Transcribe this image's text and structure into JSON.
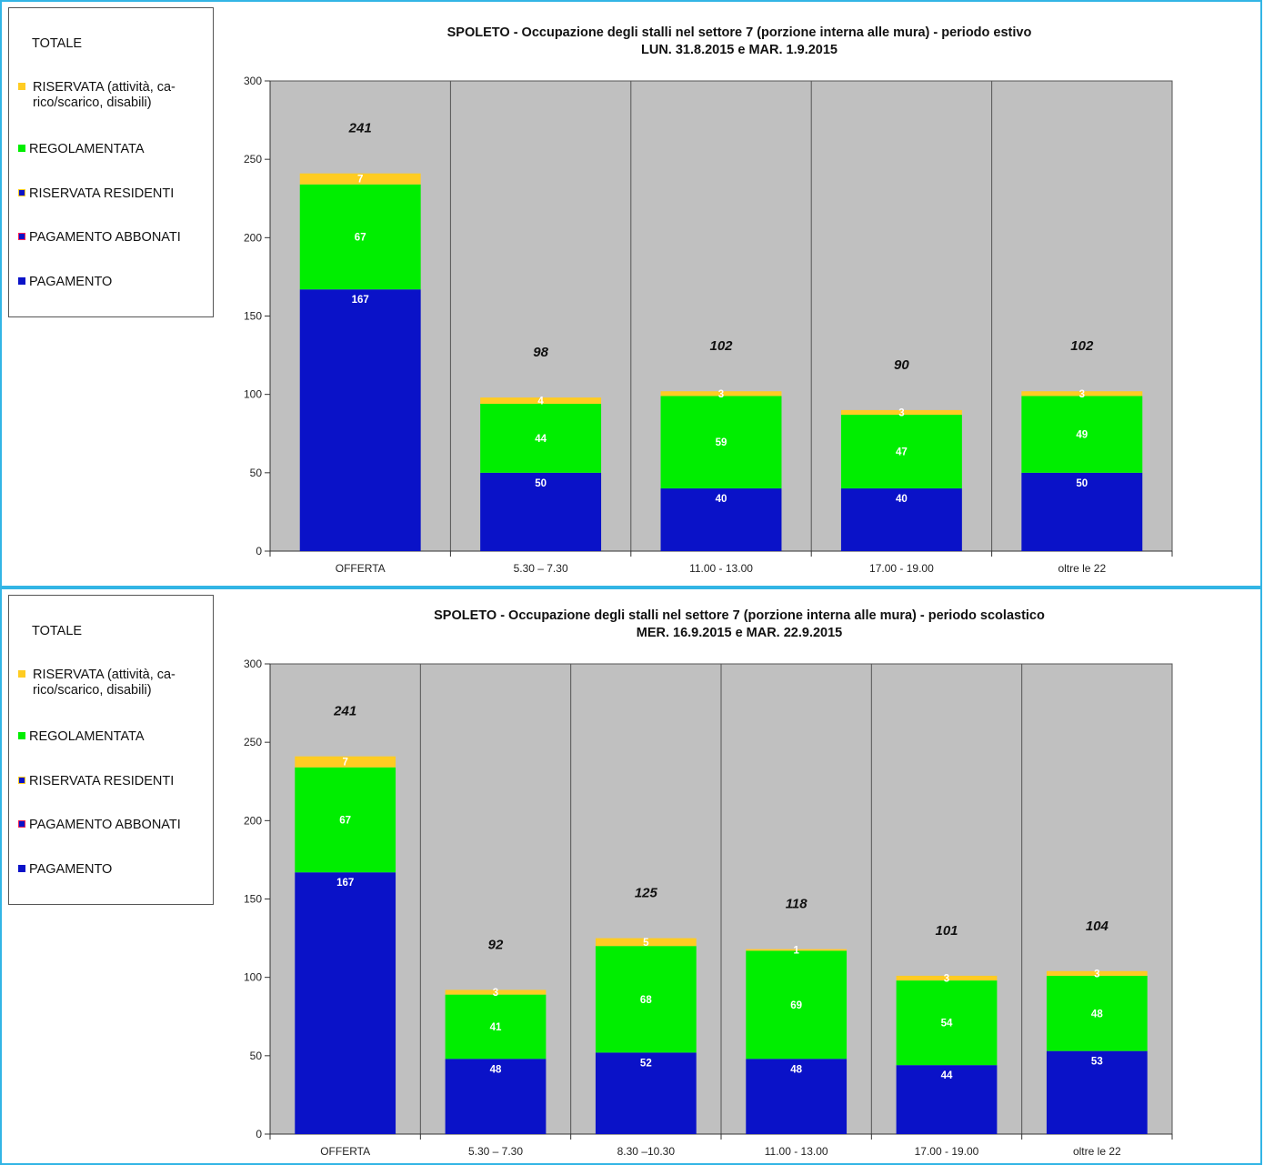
{
  "colors": {
    "riservata": "#ffcc22",
    "regolamentata": "#00ee00",
    "pagamento": "#0a12c8",
    "plot_bg": "#c0c0c0"
  },
  "legend": {
    "totale": "TOTALE",
    "riservata_l1": "RISERVATA (attività, ca-",
    "riservata_l2": "rico/scarico, disabili)",
    "regolamentata": "REGOLAMENTATA",
    "riservata_residenti": "RISERVATA RESIDENTI",
    "pagamento_abbonati": "PAGAMENTO ABBONATI",
    "pagamento": "PAGAMENTO"
  },
  "chart_data": [
    {
      "type": "bar",
      "stacked": true,
      "title": "SPOLETO - Occupazione degli stalli nel settore 7 (porzione interna alle mura) - periodo estivo",
      "subtitle": "LUN. 31.8.2015 e MAR. 1.9.2015",
      "categories": [
        "OFFERTA",
        "5.30 – 7.30",
        "11.00 - 13.00",
        "17.00 - 19.00",
        "oltre le 22"
      ],
      "series": [
        {
          "name": "PAGAMENTO",
          "values": [
            167,
            50,
            40,
            40,
            50
          ]
        },
        {
          "name": "REGOLAMENTATA",
          "values": [
            67,
            44,
            59,
            47,
            49
          ]
        },
        {
          "name": "RISERVATA (attività, carico/scarico, disabili)",
          "values": [
            7,
            4,
            3,
            3,
            3
          ]
        }
      ],
      "totals": [
        241,
        98,
        102,
        90,
        102
      ],
      "ylim": [
        0,
        300
      ],
      "yticks": [
        0,
        50,
        100,
        150,
        200,
        250,
        300
      ],
      "grid": false,
      "legend_position": "left"
    },
    {
      "type": "bar",
      "stacked": true,
      "title": "SPOLETO - Occupazione degli stalli nel settore 7 (porzione interna alle mura) - periodo scolastico",
      "subtitle": "MER. 16.9.2015 e MAR. 22.9.2015",
      "categories": [
        "OFFERTA",
        "5.30 – 7.30",
        "8.30 –10.30",
        "11.00 - 13.00",
        "17.00 - 19.00",
        "oltre le 22"
      ],
      "series": [
        {
          "name": "PAGAMENTO",
          "values": [
            167,
            48,
            52,
            48,
            44,
            53
          ]
        },
        {
          "name": "REGOLAMENTATA",
          "values": [
            67,
            41,
            68,
            69,
            54,
            48
          ]
        },
        {
          "name": "RISERVATA (attività, carico/scarico, disabili)",
          "values": [
            7,
            3,
            5,
            1,
            3,
            3
          ]
        }
      ],
      "totals": [
        241,
        92,
        125,
        118,
        101,
        104
      ],
      "ylim": [
        0,
        300
      ],
      "yticks": [
        0,
        50,
        100,
        150,
        200,
        250,
        300
      ],
      "grid": false,
      "legend_position": "left"
    }
  ]
}
